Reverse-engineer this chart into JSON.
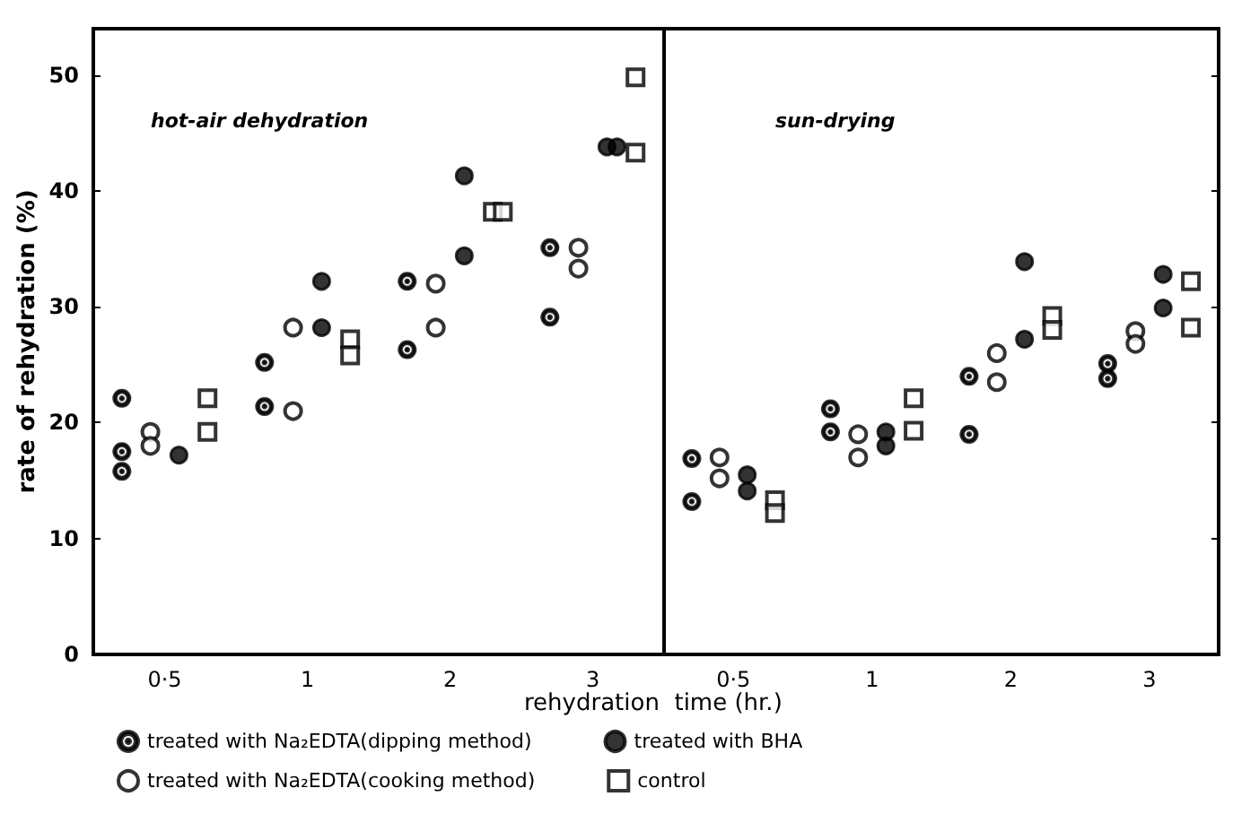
{
  "chart_data": [
    {
      "type": "scatter",
      "title": "hot-air dehydration",
      "xlabel": "rehydration  time (hr.)",
      "ylabel": "rate of rehydration (%)",
      "categories": [
        "0·5",
        "1",
        "2",
        "3"
      ],
      "ylim": [
        0,
        54
      ],
      "yticks": [
        0,
        10,
        20,
        30,
        40,
        50
      ],
      "grid": false,
      "legend": "bottom",
      "series": [
        {
          "name": "treated with Na₂EDTA(dipping method)",
          "color": "#000000",
          "marker": "circle",
          "x": [
            "0·5",
            "0·5",
            "0·5",
            "1",
            "1",
            "2",
            "2",
            "3",
            "3"
          ],
          "values": [
            17.5,
            15.8,
            22.1,
            25.2,
            21.4,
            32.2,
            26.3,
            35.1,
            29.1
          ]
        },
        {
          "name": "treated with Na₂EDTA(cooking method)",
          "color": "#000000",
          "marker": "circle",
          "x": [
            "0·5",
            "0·5",
            "1",
            "1",
            "2",
            "2",
            "3",
            "3"
          ],
          "values": [
            19.2,
            18.0,
            21.0,
            28.2,
            32.0,
            28.2,
            35.1,
            33.3
          ]
        },
        {
          "name": "treated with BHA",
          "color": "#000000",
          "marker": "circle",
          "x": [
            "0·5",
            "1",
            "1",
            "2",
            "2",
            "3",
            "3"
          ],
          "values": [
            17.2,
            28.2,
            32.2,
            41.3,
            34.4,
            43.8,
            43.8
          ]
        },
        {
          "name": "control",
          "color": "#000000",
          "marker": "square",
          "x": [
            "0·5",
            "0·5",
            "1",
            "1",
            "2",
            "2",
            "3",
            "3"
          ],
          "values": [
            22.1,
            19.2,
            27.2,
            25.8,
            38.2,
            38.2,
            49.8,
            43.3
          ]
        }
      ]
    },
    {
      "type": "scatter",
      "title": "sun-drying",
      "categories": [
        "0·5",
        "1",
        "2",
        "3"
      ],
      "ylim": [
        0,
        54
      ],
      "yticks": [
        0,
        10,
        20,
        30,
        40,
        50
      ],
      "grid": false,
      "tick_labels": "x",
      "series": [
        {
          "color": "#000000",
          "marker": "circle",
          "x": [
            "0·5",
            "0·5",
            "1",
            "1",
            "2",
            "2",
            "3",
            "3"
          ],
          "values": [
            16.9,
            13.2,
            21.2,
            19.2,
            24.0,
            19.0,
            25.1,
            23.8
          ]
        },
        {
          "color": "#000000",
          "marker": "circle",
          "x": [
            "0·5",
            "0·5",
            "1",
            "1",
            "2",
            "2",
            "3",
            "3"
          ],
          "values": [
            17.0,
            15.2,
            19.0,
            17.0,
            26.0,
            23.5,
            27.9,
            26.8
          ]
        },
        {
          "color": "#000000",
          "marker": "circle",
          "x": [
            "0·5",
            "0·5",
            "1",
            "1",
            "2",
            "2",
            "3",
            "3"
          ],
          "values": [
            15.5,
            14.1,
            19.2,
            18.0,
            27.2,
            33.9,
            32.8,
            29.9
          ]
        },
        {
          "color": "#000000",
          "marker": "square",
          "x": [
            "0·5",
            "0·5",
            "1",
            "1",
            "2",
            "2",
            "3",
            "3"
          ],
          "values": [
            13.3,
            12.2,
            22.1,
            19.3,
            29.2,
            28.0,
            32.2,
            28.2
          ]
        }
      ]
    }
  ]
}
